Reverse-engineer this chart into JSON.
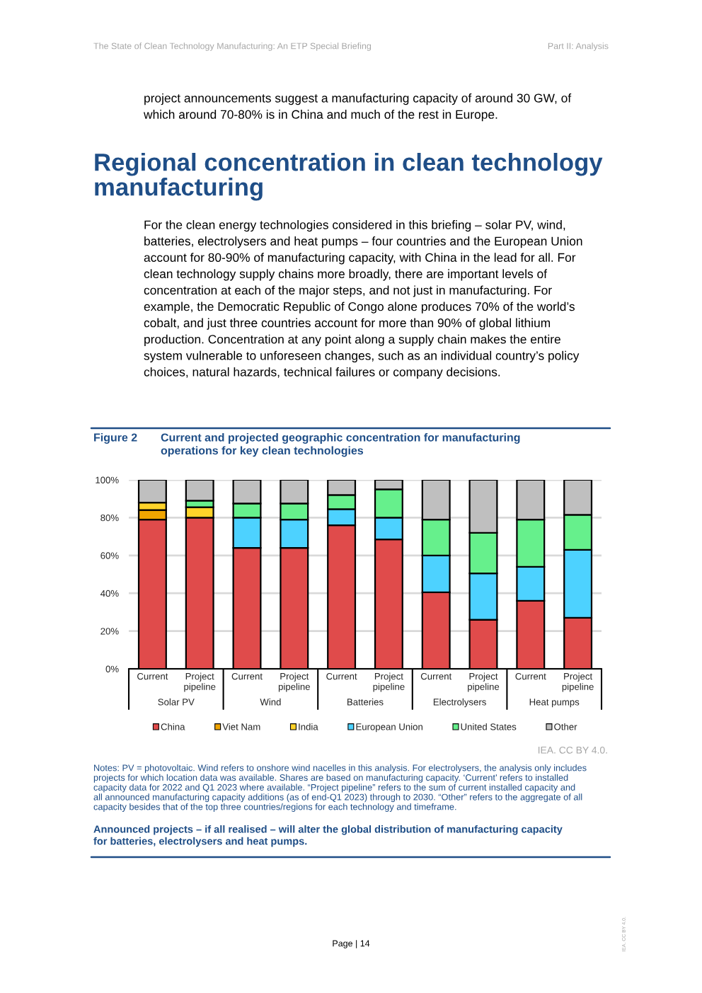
{
  "chart_data": {
    "type": "bar",
    "stacked": true,
    "title": "Current and projected geographic concentration for manufacturing\noperations for key clean technologies",
    "categories": [
      "Current",
      "Project\npipeline",
      "Current",
      "Project\npipeline",
      "Current",
      "Project\npipeline",
      "Current",
      "Project\npipeline",
      "Current",
      "Project\npipeline"
    ],
    "series": [
      {
        "name": "China",
        "color": "#e04b4b",
        "values": [
          79,
          80,
          64,
          64,
          76,
          68.5,
          40.5,
          26,
          36,
          27
        ]
      },
      {
        "name": "Viet Nam",
        "color": "#f0a500",
        "values": [
          5,
          null,
          null,
          null,
          null,
          null,
          null,
          null,
          null,
          null
        ]
      },
      {
        "name": "India",
        "color": "#ffd42a",
        "values": [
          4,
          5.5,
          null,
          null,
          null,
          null,
          null,
          null,
          null,
          null
        ]
      },
      {
        "name": "European Union",
        "color": "#4dd2ff",
        "values": [
          null,
          null,
          16,
          15,
          8.5,
          11.5,
          19.5,
          24.5,
          18,
          36
        ]
      },
      {
        "name": "United States",
        "color": "#66f08c",
        "values": [
          null,
          3.5,
          7.5,
          8.5,
          7.5,
          15,
          19,
          21.5,
          25,
          18.5
        ]
      },
      {
        "name": "Other",
        "color": "#bfbfbf",
        "values": [
          12,
          11,
          12.5,
          12.5,
          8,
          5,
          21,
          28,
          21,
          18.5
        ]
      }
    ],
    "ylim": [
      0,
      100
    ],
    "yticks": [
      {
        "value": 0,
        "label": "0%"
      },
      {
        "value": 20,
        "label": "20%"
      },
      {
        "value": 40,
        "label": "40%"
      },
      {
        "value": 60,
        "label": "60%"
      },
      {
        "value": 80,
        "label": "80%"
      },
      {
        "value": 100,
        "label": "100%"
      }
    ],
    "grid": "y",
    "legend": "bottom",
    "annotations": [
      "Solar PV",
      "Wind",
      "Batteries",
      "Electrolysers",
      "Heat pumps",
      "Figure 2",
      "The State of Clean Technology Manufacturing: An ETP Special Briefing",
      "Part II: Analysis",
      "project announcements suggest a manufacturing capacity of around 30 GW, of\nwhich around 70-80% is in China and much of the rest in Europe.",
      "Regional concentration in clean technology\nmanufacturing",
      "For the clean energy technologies considered in this briefing – solar PV, wind,\nbatteries, electrolysers and heat pumps – four countries and the European Union\naccount for 80-90% of manufacturing capacity, with China in the lead for all. For\nclean technology supply chains more broadly, there are important levels of\nconcentration at each of the major steps, and not just in manufacturing. For\nexample, the Democratic Republic of Congo alone produces 70% of the world’s\ncobalt, and just three countries account for more than 90% of global lithium\nproduction. Concentration at any point along a supply chain makes the entire\nsystem vulnerable to unforeseen changes, such as an individual country’s policy\nchoices, natural hazards, technical failures or company decisions.",
      "IEA. CC BY 4.0.",
      "Notes: PV = photovoltaic. Wind refers to onshore wind nacelles in this analysis. For electrolysers, the analysis only includes\nprojects for which location data was available. Shares are based on manufacturing capacity. ‘Current’ refers to installed\ncapacity data for 2022 and Q1 2023 where available. “Project pipeline” refers to the sum of current installed capacity and\nall announced manufacturing capacity additions (as of end-Q1 2023) through to 2030. “Other” refers to the aggregate of all\ncapacity besides that of the top three countries/regions for each technology and timeframe.",
      "Announced projects – if all realised – will alter the global distribution of manufacturing capacity\nfor batteries, electrolysers and heat pumps.",
      "Page | 14",
      "IEA. CC BY 4.0."
    ]
  }
}
